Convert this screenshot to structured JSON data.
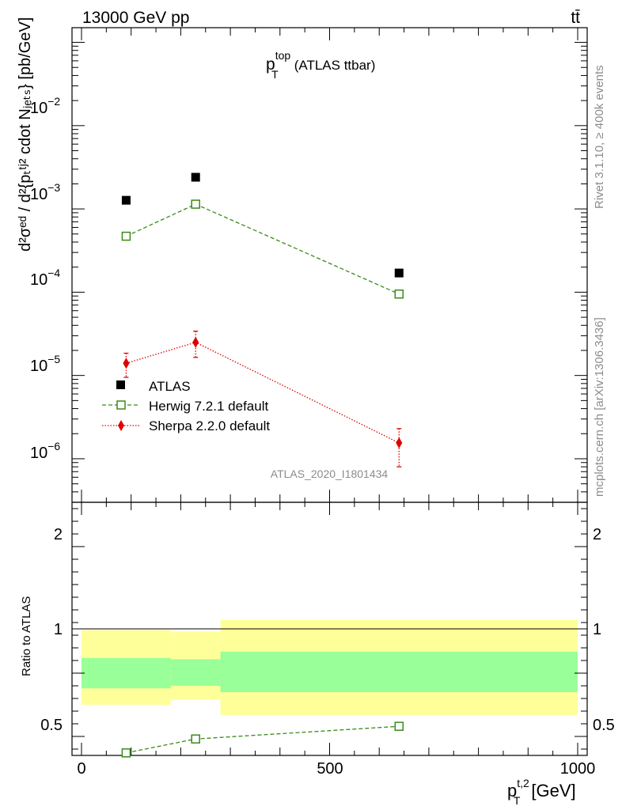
{
  "header": {
    "left": "13000 GeV pp",
    "right": "tt̄"
  },
  "plot_title": {
    "main": "p",
    "sup": "top",
    "sub": "T",
    "rest": "(ATLAS ttbar)"
  },
  "ylabel_main": "d²σᵉᵈ / d²{pₜᵗʲ² cdot Nⱼₑₜₛ} [pb/GeV]",
  "ylabel_ratio": "Ratio to ATLAS",
  "xlabel": {
    "main": "p",
    "sup": "t,2",
    "sub": "T",
    "unit": "[GeV]"
  },
  "side_texts": {
    "rivet": "Rivet 3.1.10, ≥ 400k events",
    "mcplots": "mcplots.cern.ch [arXiv:1306.3436]"
  },
  "analysis_id": "ATLAS_2020_I1801434",
  "ticks": {
    "main_y": [
      {
        "base": "10",
        "exp": "−2",
        "value": 0.01
      },
      {
        "base": "10",
        "exp": "−3",
        "value": 0.001
      },
      {
        "base": "10",
        "exp": "−4",
        "value": 0.0001
      },
      {
        "base": "10",
        "exp": "−5",
        "value": 1e-05
      },
      {
        "base": "10",
        "exp": "−6",
        "value": 1e-06
      }
    ],
    "ratio_y": [
      "2",
      "1",
      "0.5"
    ],
    "x": [
      "0",
      "500",
      "1000"
    ]
  },
  "legend": [
    {
      "label": "ATLAS",
      "color": "#000000",
      "marker": "square-filled"
    },
    {
      "label": "Herwig 7.2.1 default",
      "color": "#3a8a1a",
      "marker": "square-open"
    },
    {
      "label": "Sherpa 2.2.0 default",
      "color": "#e00000",
      "marker": "diamond-filled"
    }
  ],
  "chart_data": {
    "type": "scatter",
    "title": "p_T^top (ATLAS ttbar)",
    "xlabel": "p_T^t,2 [GeV]",
    "ylabel": "d^2 sigma^fid / d^2{p_T^t,2 cdot N_jets} [pb/GeV]",
    "ratio_ylabel": "Ratio to ATLAS",
    "xlim": [
      -20,
      1020
    ],
    "ylim": [
      3e-07,
      0.15
    ],
    "ylog": true,
    "ratio_ylim": [
      0.35,
      2.35
    ],
    "bins": [
      [
        0,
        180
      ],
      [
        180,
        280
      ],
      [
        280,
        1000
      ]
    ],
    "x": [
      90,
      230,
      640
    ],
    "series": [
      {
        "name": "ATLAS",
        "color": "#000000",
        "values": [
          0.00127,
          0.0024,
          0.00017
        ]
      },
      {
        "name": "Herwig 7.2.1 default",
        "color": "#3a8a1a",
        "values": [
          0.00047,
          0.00114,
          9.5e-05
        ],
        "ratio": [
          0.37,
          0.48,
          0.58
        ],
        "ratio_err": [
          0.0,
          0.015,
          0.03
        ]
      },
      {
        "name": "Sherpa 2.2.0 default",
        "color": "#e00000",
        "values": [
          1.4e-05,
          2.5e-05,
          1.55e-06
        ],
        "err_low": [
          9.5e-06,
          1.65e-05,
          8e-07
        ],
        "err_high": [
          1.85e-05,
          3.4e-05,
          2.3e-06
        ]
      }
    ],
    "ratio_bands": [
      {
        "x0": 0,
        "x1": 180,
        "inner": [
          0.88,
          1.12
        ],
        "outer": [
          0.75,
          1.34
        ]
      },
      {
        "x0": 180,
        "x1": 280,
        "inner": [
          0.9,
          1.11
        ],
        "outer": [
          0.79,
          1.33
        ]
      },
      {
        "x0": 280,
        "x1": 1000,
        "inner": [
          0.85,
          1.17
        ],
        "outer": [
          0.67,
          1.42
        ]
      }
    ],
    "band_colors": {
      "inner": "#99ff99",
      "outer": "#ffff99"
    },
    "legend_position": "left-middle"
  }
}
